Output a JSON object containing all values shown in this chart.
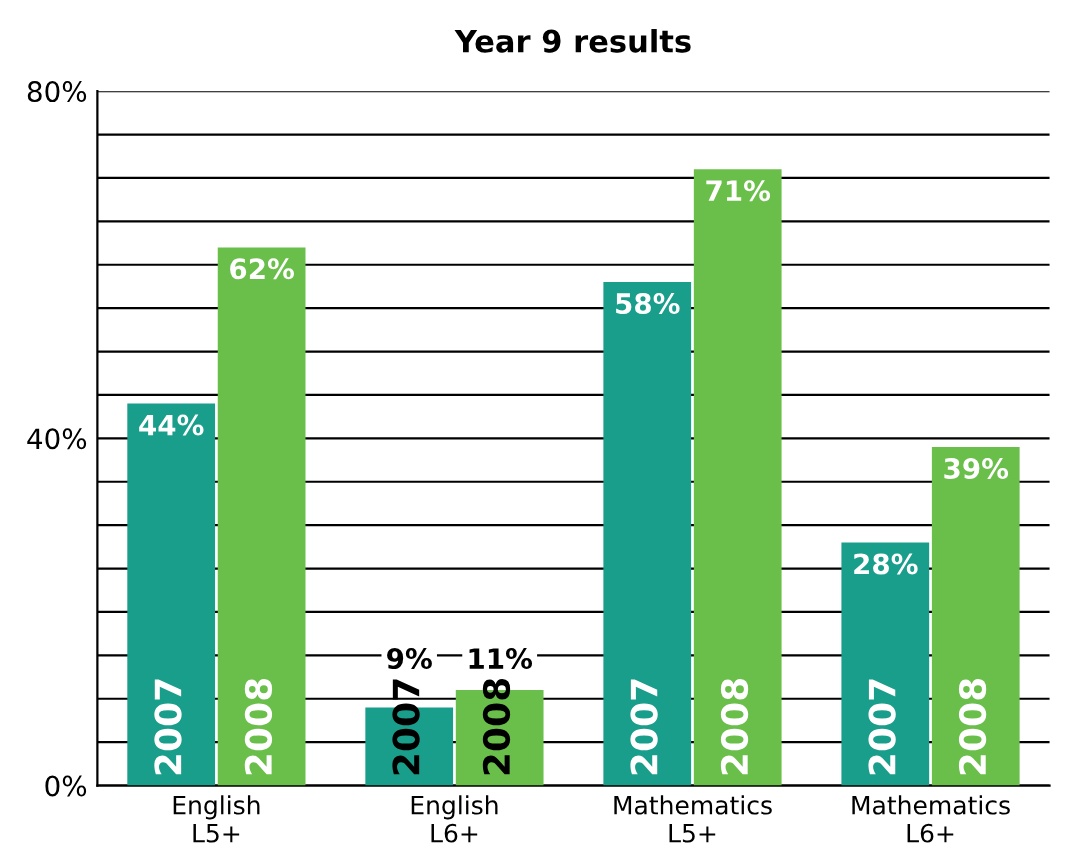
{
  "chart_data": {
    "type": "bar",
    "title": "Year 9 results",
    "categories": [
      "English\nL5+",
      "English\nL6+",
      "Mathematics\nL5+",
      "Mathematics\nL6+"
    ],
    "series": [
      {
        "name": "2007",
        "color": "#1a9e8c",
        "values": [
          44,
          9,
          58,
          28
        ],
        "value_labels": [
          "44%",
          "9%",
          "58%",
          "28%"
        ]
      },
      {
        "name": "2008",
        "color": "#6abf4b",
        "values": [
          62,
          11,
          71,
          39
        ],
        "value_labels": [
          "62%",
          "11%",
          "71%",
          "39%"
        ]
      }
    ],
    "ylim": [
      0,
      80
    ],
    "yticks": [
      {
        "value": 0,
        "label": "0%"
      },
      {
        "value": 5,
        "label": null
      },
      {
        "value": 10,
        "label": null
      },
      {
        "value": 15,
        "label": null
      },
      {
        "value": 20,
        "label": null
      },
      {
        "value": 25,
        "label": null
      },
      {
        "value": 30,
        "label": null
      },
      {
        "value": 35,
        "label": null
      },
      {
        "value": 40,
        "label": "40%"
      },
      {
        "value": 45,
        "label": null
      },
      {
        "value": 50,
        "label": null
      },
      {
        "value": 55,
        "label": null
      },
      {
        "value": 60,
        "label": null
      },
      {
        "value": 65,
        "label": null
      },
      {
        "value": 70,
        "label": null
      },
      {
        "value": 75,
        "label": null
      },
      {
        "value": 80,
        "label": "80%"
      }
    ],
    "grid": "y"
  }
}
